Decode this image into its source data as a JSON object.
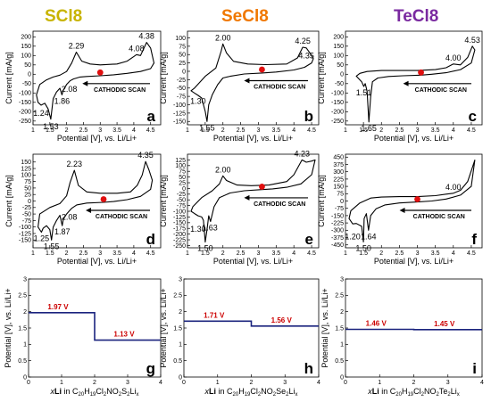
{
  "headers": [
    {
      "text": "SCl8",
      "color": "#c8b400"
    },
    {
      "text": "SeCl8",
      "color": "#f07800"
    },
    {
      "text": "TeCl8",
      "color": "#7a2aa0"
    }
  ],
  "chart_data": [
    {
      "id": "a",
      "type": "line",
      "panel_label": "a",
      "xlabel": "Potential [V], vs. Li/Li+",
      "ylabel": "Current [mA/g]",
      "xlim": [
        1,
        4.8
      ],
      "ylim": [
        -270,
        230
      ],
      "yticks": [
        -250,
        -200,
        -150,
        -100,
        -50,
        0,
        50,
        100,
        150,
        200
      ],
      "xticks": [
        1,
        1.5,
        2,
        2.5,
        3,
        3.5,
        4,
        4.5
      ],
      "annotation": "CATHODIC SCAN",
      "marker_x": 3.0,
      "peaks": [
        {
          "label": "2.29",
          "x": 2.29,
          "y": 118
        },
        {
          "label": "4.38",
          "x": 4.38,
          "y": 170
        },
        {
          "label": "4.08",
          "x": 4.08,
          "y": 105
        },
        {
          "label": "2.08",
          "x": 2.08,
          "y": -45
        },
        {
          "label": "1.86",
          "x": 1.86,
          "y": -110
        },
        {
          "label": "1.24",
          "x": 1.24,
          "y": -175
        },
        {
          "label": "1.53",
          "x": 1.53,
          "y": -245
        }
      ],
      "series": [
        {
          "x": [
            3.0,
            2.6,
            2.4,
            2.2,
            2.1,
            2.05,
            2.0,
            1.9,
            1.86,
            1.8,
            1.7,
            1.6,
            1.53,
            1.45,
            1.35,
            1.24,
            1.15,
            1.1,
            1.2,
            1.4,
            1.6,
            1.8,
            2.0,
            2.15,
            2.29,
            2.45,
            2.7,
            3.0,
            3.5,
            3.8,
            4.0,
            4.08,
            4.2,
            4.38,
            4.5,
            4.6,
            4.5,
            4.2,
            3.8,
            3.4,
            3.0
          ],
          "y": [
            -8,
            -12,
            -15,
            -25,
            -35,
            -45,
            -55,
            -85,
            -110,
            -75,
            -95,
            -130,
            -240,
            -185,
            -155,
            -165,
            -150,
            -110,
            -55,
            -30,
            -15,
            -5,
            15,
            60,
            118,
            70,
            55,
            50,
            55,
            70,
            95,
            105,
            100,
            170,
            140,
            60,
            30,
            15,
            5,
            -3,
            -8
          ]
        }
      ]
    },
    {
      "id": "b",
      "type": "line",
      "panel_label": "b",
      "xlabel": "Potential [V], vs. Li/Li+",
      "ylabel": "Current [mA/g]",
      "xlim": [
        1,
        4.7
      ],
      "ylim": [
        -160,
        120
      ],
      "yticks": [
        -150,
        -125,
        -100,
        -75,
        -50,
        -25,
        0,
        25,
        50,
        75,
        100
      ],
      "xticks": [
        1,
        1.5,
        2,
        2.5,
        3,
        3.5,
        4,
        4.5
      ],
      "annotation": "CATHODIC SCAN",
      "marker_x": 3.1,
      "peaks": [
        {
          "label": "2.00",
          "x": 2.0,
          "y": 82
        },
        {
          "label": "4.25",
          "x": 4.25,
          "y": 72
        },
        {
          "label": "4.35",
          "x": 4.35,
          "y": 28
        },
        {
          "label": "1.30",
          "x": 1.3,
          "y": -70
        },
        {
          "label": "1.55",
          "x": 1.55,
          "y": -150
        }
      ],
      "series": [
        {
          "x": [
            3.1,
            2.6,
            2.2,
            2.0,
            1.85,
            1.7,
            1.6,
            1.55,
            1.5,
            1.4,
            1.3,
            1.2,
            1.1,
            1.2,
            1.5,
            1.8,
            1.95,
            2.0,
            2.1,
            2.3,
            2.7,
            3.2,
            3.8,
            4.1,
            4.25,
            4.35,
            4.45,
            4.55,
            4.5,
            4.3,
            4.0,
            3.5,
            3.1
          ],
          "y": [
            -5,
            -8,
            -15,
            -20,
            -40,
            -70,
            -100,
            -150,
            -120,
            -80,
            -72,
            -65,
            -58,
            -50,
            -15,
            10,
            60,
            82,
            55,
            30,
            22,
            20,
            22,
            40,
            72,
            70,
            55,
            38,
            25,
            12,
            4,
            -2,
            -5
          ]
        }
      ]
    },
    {
      "id": "c",
      "type": "line",
      "panel_label": "c",
      "xlabel": "Potential [V], vs. Li/Li+",
      "ylabel": "Current [mA/g]",
      "xlim": [
        1,
        4.8
      ],
      "ylim": [
        -270,
        230
      ],
      "yticks": [
        -250,
        -200,
        -150,
        -100,
        -50,
        0,
        50,
        100,
        150,
        200
      ],
      "xticks": [
        1,
        1.5,
        2,
        2.5,
        3,
        3.5,
        4,
        4.5
      ],
      "annotation": "CATHODIC SCAN",
      "marker_x": 3.1,
      "peaks": [
        {
          "label": "4.53",
          "x": 4.53,
          "y": 150
        },
        {
          "label": "4.00",
          "x": 4.0,
          "y": 55
        },
        {
          "label": "1.51",
          "x": 1.51,
          "y": -65
        },
        {
          "label": "1.65",
          "x": 1.65,
          "y": -255
        }
      ],
      "series": [
        {
          "x": [
            3.1,
            2.6,
            2.2,
            1.9,
            1.75,
            1.7,
            1.65,
            1.6,
            1.55,
            1.51,
            1.45,
            1.35,
            1.3,
            1.4,
            1.6,
            2.0,
            2.5,
            3.0,
            3.5,
            3.8,
            4.0,
            4.2,
            4.4,
            4.53,
            4.6,
            4.5,
            4.2,
            3.8,
            3.4,
            3.1
          ],
          "y": [
            -5,
            -8,
            -12,
            -20,
            -40,
            -120,
            -255,
            -90,
            -50,
            -65,
            -40,
            -20,
            -10,
            5,
            15,
            20,
            20,
            20,
            25,
            35,
            55,
            50,
            90,
            150,
            130,
            60,
            25,
            8,
            0,
            -5
          ]
        }
      ]
    },
    {
      "id": "d",
      "type": "line",
      "panel_label": "d",
      "xlabel": "Potential [V], vs. Li/Li+",
      "ylabel": "Current [mA/g]",
      "xlim": [
        1,
        4.8
      ],
      "ylim": [
        -180,
        180
      ],
      "yticks": [
        -150,
        -125,
        -100,
        -75,
        -50,
        -25,
        0,
        25,
        50,
        75,
        100,
        125,
        150
      ],
      "xticks": [
        1,
        1.5,
        2,
        2.5,
        3,
        3.5,
        4,
        4.5
      ],
      "annotation": "CATHODIC SCAN",
      "marker_x": 3.1,
      "peaks": [
        {
          "label": "2.23",
          "x": 2.23,
          "y": 118
        },
        {
          "label": "4.35",
          "x": 4.35,
          "y": 152
        },
        {
          "label": "2.08",
          "x": 2.08,
          "y": -38
        },
        {
          "label": "1.87",
          "x": 1.87,
          "y": -95
        },
        {
          "label": "1.25",
          "x": 1.25,
          "y": -120
        },
        {
          "label": "1.55",
          "x": 1.55,
          "y": -150
        }
      ],
      "series": [
        {
          "x": [
            3.1,
            2.6,
            2.3,
            2.15,
            2.08,
            2.0,
            1.9,
            1.87,
            1.8,
            1.7,
            1.6,
            1.55,
            1.5,
            1.4,
            1.3,
            1.25,
            1.15,
            1.2,
            1.5,
            1.8,
            2.0,
            2.1,
            2.23,
            2.35,
            2.6,
            3.0,
            3.5,
            3.9,
            4.1,
            4.25,
            4.35,
            4.45,
            4.55,
            4.5,
            4.2,
            3.8,
            3.4,
            3.1
          ],
          "y": [
            -5,
            -8,
            -15,
            -28,
            -38,
            -50,
            -70,
            -95,
            -55,
            -75,
            -100,
            -150,
            -110,
            -95,
            -105,
            -120,
            -100,
            -50,
            -25,
            -10,
            20,
            70,
            118,
            60,
            35,
            30,
            30,
            35,
            60,
            100,
            152,
            120,
            80,
            45,
            18,
            5,
            -2,
            -5
          ]
        }
      ]
    },
    {
      "id": "e",
      "type": "line",
      "panel_label": "e",
      "xlabel": "Potential [V], vs. Li/Li+",
      "ylabel": "Current [mA/g]",
      "xlim": [
        1,
        4.7
      ],
      "ylim": [
        -260,
        150
      ],
      "yticks": [
        -250,
        -225,
        -200,
        -175,
        -150,
        -125,
        -100,
        -75,
        -50,
        -25,
        0,
        25,
        50,
        75,
        100,
        125
      ],
      "xticks": [
        1,
        1.5,
        2,
        2.5,
        3,
        3.5,
        4,
        4.5
      ],
      "annotation": "CATHODIC SCAN",
      "marker_x": 3.1,
      "peaks": [
        {
          "label": "2.00",
          "x": 2.0,
          "y": 55
        },
        {
          "label": "4.23",
          "x": 4.23,
          "y": 125
        },
        {
          "label": "1.30",
          "x": 1.3,
          "y": -150
        },
        {
          "label": "1.63",
          "x": 1.63,
          "y": -145
        },
        {
          "label": "1.50",
          "x": 1.5,
          "y": -235
        }
      ],
      "series": [
        {
          "x": [
            3.1,
            2.6,
            2.2,
            1.9,
            1.75,
            1.65,
            1.6,
            1.55,
            1.5,
            1.45,
            1.4,
            1.3,
            1.2,
            1.1,
            1.15,
            1.4,
            1.7,
            1.9,
            2.0,
            2.1,
            2.4,
            2.8,
            3.3,
            3.8,
            4.0,
            4.23,
            4.35,
            4.5,
            4.6,
            4.5,
            4.2,
            3.8,
            3.4,
            3.1
          ],
          "y": [
            -5,
            -10,
            -20,
            -40,
            -80,
            -145,
            -120,
            -180,
            -235,
            -140,
            -125,
            -120,
            -110,
            -100,
            -80,
            -40,
            -10,
            20,
            55,
            35,
            15,
            12,
            15,
            30,
            60,
            125,
            115,
            120,
            125,
            60,
            20,
            5,
            -2,
            -5
          ]
        }
      ]
    },
    {
      "id": "f",
      "type": "line",
      "panel_label": "f",
      "xlabel": "Potential [V], vs. Li/Li+",
      "ylabel": "Current [mA/g]",
      "xlim": [
        1,
        4.8
      ],
      "ylim": [
        -480,
        480
      ],
      "yticks": [
        -450,
        -375,
        -300,
        -225,
        -150,
        -75,
        0,
        75,
        150,
        225,
        300,
        375,
        450
      ],
      "xticks": [
        1,
        1.5,
        2,
        2.5,
        3,
        3.5,
        4,
        4.5
      ],
      "annotation": "CATHODIC SCAN",
      "marker_x": 3.0,
      "peaks": [
        {
          "label": "4.00",
          "x": 4.0,
          "y": 80
        },
        {
          "label": "1.20",
          "x": 1.2,
          "y": -300
        },
        {
          "label": "1.50",
          "x": 1.5,
          "y": -420
        },
        {
          "label": "1.64",
          "x": 1.64,
          "y": -300
        }
      ],
      "series": [
        {
          "x": [
            3.0,
            2.5,
            2.1,
            1.85,
            1.7,
            1.64,
            1.58,
            1.52,
            1.5,
            1.45,
            1.3,
            1.2,
            1.1,
            1.15,
            1.4,
            1.7,
            2.0,
            2.5,
            3.0,
            3.5,
            3.8,
            4.0,
            4.2,
            4.4,
            4.6,
            4.5,
            4.2,
            3.8,
            3.4,
            3.0
          ],
          "y": [
            -10,
            -20,
            -40,
            -80,
            -150,
            -300,
            -130,
            -180,
            -420,
            -260,
            -230,
            -235,
            -180,
            -100,
            -20,
            30,
            40,
            45,
            45,
            55,
            70,
            80,
            110,
            200,
            420,
            150,
            60,
            20,
            0,
            -10
          ]
        }
      ]
    },
    {
      "id": "g",
      "type": "line",
      "panel_label": "g",
      "ylabel": "Potential [V], vs. Li/Li+",
      "xlim": [
        0,
        4
      ],
      "ylim": [
        0,
        3
      ],
      "xticks": [
        0,
        1,
        2,
        3,
        4
      ],
      "yticks": [
        0,
        0.5,
        1,
        1.5,
        2,
        2.5,
        3
      ],
      "x_label_parts": {
        "prefix": "x",
        "bold": "Li",
        "mid": " in C",
        "s1": "20",
        "t1": "H",
        "s2": "19",
        "t2": "Cl",
        "s3": "2",
        "t3": "NO",
        "s4": "2",
        "t4": "S",
        "s5": "2",
        "t5": "Li",
        "s6": "x"
      },
      "steps": [
        {
          "x0": 0,
          "x1": 2,
          "y": 1.97,
          "label": "1.97 V"
        },
        {
          "x0": 2,
          "x1": 4,
          "y": 1.13,
          "label": "1.13 V"
        }
      ]
    },
    {
      "id": "h",
      "type": "line",
      "panel_label": "h",
      "ylabel": "Potential [V], vs. Li/Li+",
      "xlim": [
        0,
        4
      ],
      "ylim": [
        0,
        3
      ],
      "xticks": [
        0,
        1,
        2,
        3,
        4
      ],
      "yticks": [
        0,
        0.5,
        1,
        1.5,
        2,
        2.5,
        3
      ],
      "x_label_parts": {
        "prefix": "x",
        "bold": "Li",
        "mid": " in C",
        "s1": "20",
        "t1": "H",
        "s2": "19",
        "t2": "Cl",
        "s3": "2",
        "t3": "NO",
        "s4": "2",
        "t4": "Se",
        "s5": "2",
        "t5": "Li",
        "s6": "x"
      },
      "steps": [
        {
          "x0": 0,
          "x1": 2,
          "y": 1.71,
          "label": "1.71 V"
        },
        {
          "x0": 2,
          "x1": 4,
          "y": 1.56,
          "label": "1.56 V"
        }
      ]
    },
    {
      "id": "i",
      "type": "line",
      "panel_label": "i",
      "ylabel": "Potential [V], vs. Li/Li+",
      "xlim": [
        0,
        4
      ],
      "ylim": [
        0,
        3
      ],
      "xticks": [
        0,
        1,
        2,
        3,
        4
      ],
      "yticks": [
        0,
        0.5,
        1,
        1.5,
        2,
        2.5,
        3
      ],
      "x_label_parts": {
        "prefix": "x",
        "bold": "Li",
        "mid": " in C",
        "s1": "20",
        "t1": "H",
        "s2": "19",
        "t2": "Cl",
        "s3": "2",
        "t3": "NO",
        "s4": "2",
        "t4": "Te",
        "s5": "2",
        "t5": "Li",
        "s6": "x"
      },
      "steps": [
        {
          "x0": 0,
          "x1": 2,
          "y": 1.46,
          "label": "1.46 V"
        },
        {
          "x0": 2,
          "x1": 4,
          "y": 1.45,
          "label": "1.45 V"
        }
      ]
    }
  ]
}
